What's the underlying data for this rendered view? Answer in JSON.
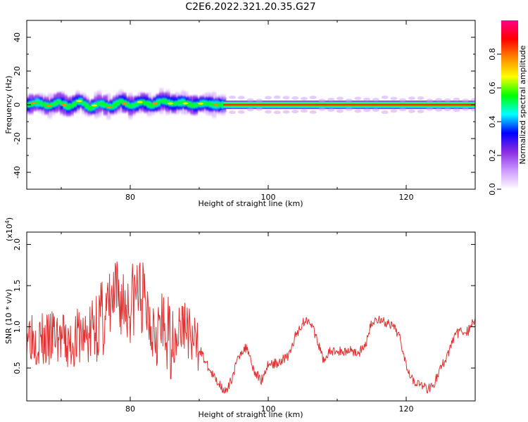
{
  "title": "C2E6.2022.321.20.35.G27",
  "chart_data": [
    {
      "type": "heatmap",
      "xlabel": "Height of straight line (km)",
      "ylabel": "Frequency (Hz)",
      "xlim": [
        65,
        130
      ],
      "ylim": [
        -50,
        50
      ],
      "xticks": [
        80,
        100,
        120
      ],
      "yticks": [
        -40,
        -20,
        0,
        20,
        40
      ],
      "colorbar": {
        "label": "Normalized spectral amplitude",
        "range": [
          0.0,
          1.0
        ],
        "ticks": [
          0.0,
          0.2,
          0.4,
          0.6,
          0.8
        ],
        "colormap": [
          "#ffffff",
          "#cc99ff",
          "#8a2be2",
          "#0000ff",
          "#00ffff",
          "#00ff00",
          "#ffff00",
          "#ff8800",
          "#ff0000",
          "#ff0088"
        ]
      },
      "band_description": {
        "broad_region_km": [
          65,
          93.5
        ],
        "broad_halfwidth_hz": 6,
        "narrow_region_km": [
          93.5,
          130
        ],
        "narrow_halfwidth_hz": 2.5,
        "peak_center_hz": 0
      },
      "centerline": {
        "x": [
          65,
          66.5,
          68,
          69.5,
          71,
          72.5,
          74,
          75.5,
          77,
          78.5,
          80,
          81.5,
          83,
          84.5,
          86,
          87.5,
          89,
          90.5,
          92,
          93.5,
          95,
          100,
          110,
          120,
          130
        ],
        "y": [
          0,
          1.5,
          -1,
          1.8,
          -1.5,
          2.5,
          -2,
          1,
          -1.5,
          2.2,
          -1,
          1.8,
          -0.5,
          2.5,
          0.5,
          1.5,
          -0.5,
          1,
          0,
          0,
          0,
          0,
          0,
          0,
          0
        ]
      }
    },
    {
      "type": "line",
      "xlabel": "Height of straight line (km)",
      "ylabel": "SNR (10 * v/v)",
      "multiplier": "(x10",
      "multiplier_exp": "4",
      "multiplier_close": ")",
      "xlim": [
        65,
        130
      ],
      "ylim": [
        0.1,
        2.15
      ],
      "xticks": [
        80,
        100,
        120
      ],
      "yticks": [
        0.5,
        1.0,
        1.5,
        2.0
      ],
      "color": "#e03030",
      "series": [
        {
          "x": [
            65,
            66,
            67,
            68,
            69,
            70,
            71,
            72,
            73,
            74,
            75,
            76,
            77,
            78,
            79,
            80,
            81,
            82,
            83,
            84,
            85,
            86,
            87,
            88,
            89,
            90,
            91,
            92,
            93,
            94,
            95,
            96,
            97,
            98,
            99,
            100,
            101,
            102,
            103,
            104,
            105,
            106,
            107,
            108,
            109,
            110,
            111,
            112,
            113,
            114,
            115,
            116,
            117,
            118,
            119,
            120,
            121,
            122,
            123,
            124,
            125,
            126,
            127,
            128,
            129,
            130
          ],
          "values": [
            1.0,
            0.9,
            0.85,
            0.8,
            0.9,
            0.85,
            0.75,
            0.85,
            0.9,
            0.85,
            1.05,
            1.1,
            1.2,
            1.35,
            1.3,
            1.25,
            1.45,
            1.3,
            1.1,
            1.0,
            0.9,
            0.85,
            0.95,
            1.05,
            0.8,
            0.75,
            0.55,
            0.4,
            0.3,
            0.2,
            0.45,
            0.7,
            0.75,
            0.45,
            0.35,
            0.55,
            0.55,
            0.6,
            0.65,
            0.9,
            1.05,
            1.1,
            0.85,
            0.6,
            0.7,
            0.7,
            0.7,
            0.72,
            0.68,
            0.75,
            1.05,
            1.1,
            1.05,
            1.0,
            0.9,
            0.55,
            0.35,
            0.3,
            0.25,
            0.3,
            0.5,
            0.65,
            0.9,
            0.95,
            0.95,
            1.1
          ]
        }
      ]
    }
  ]
}
